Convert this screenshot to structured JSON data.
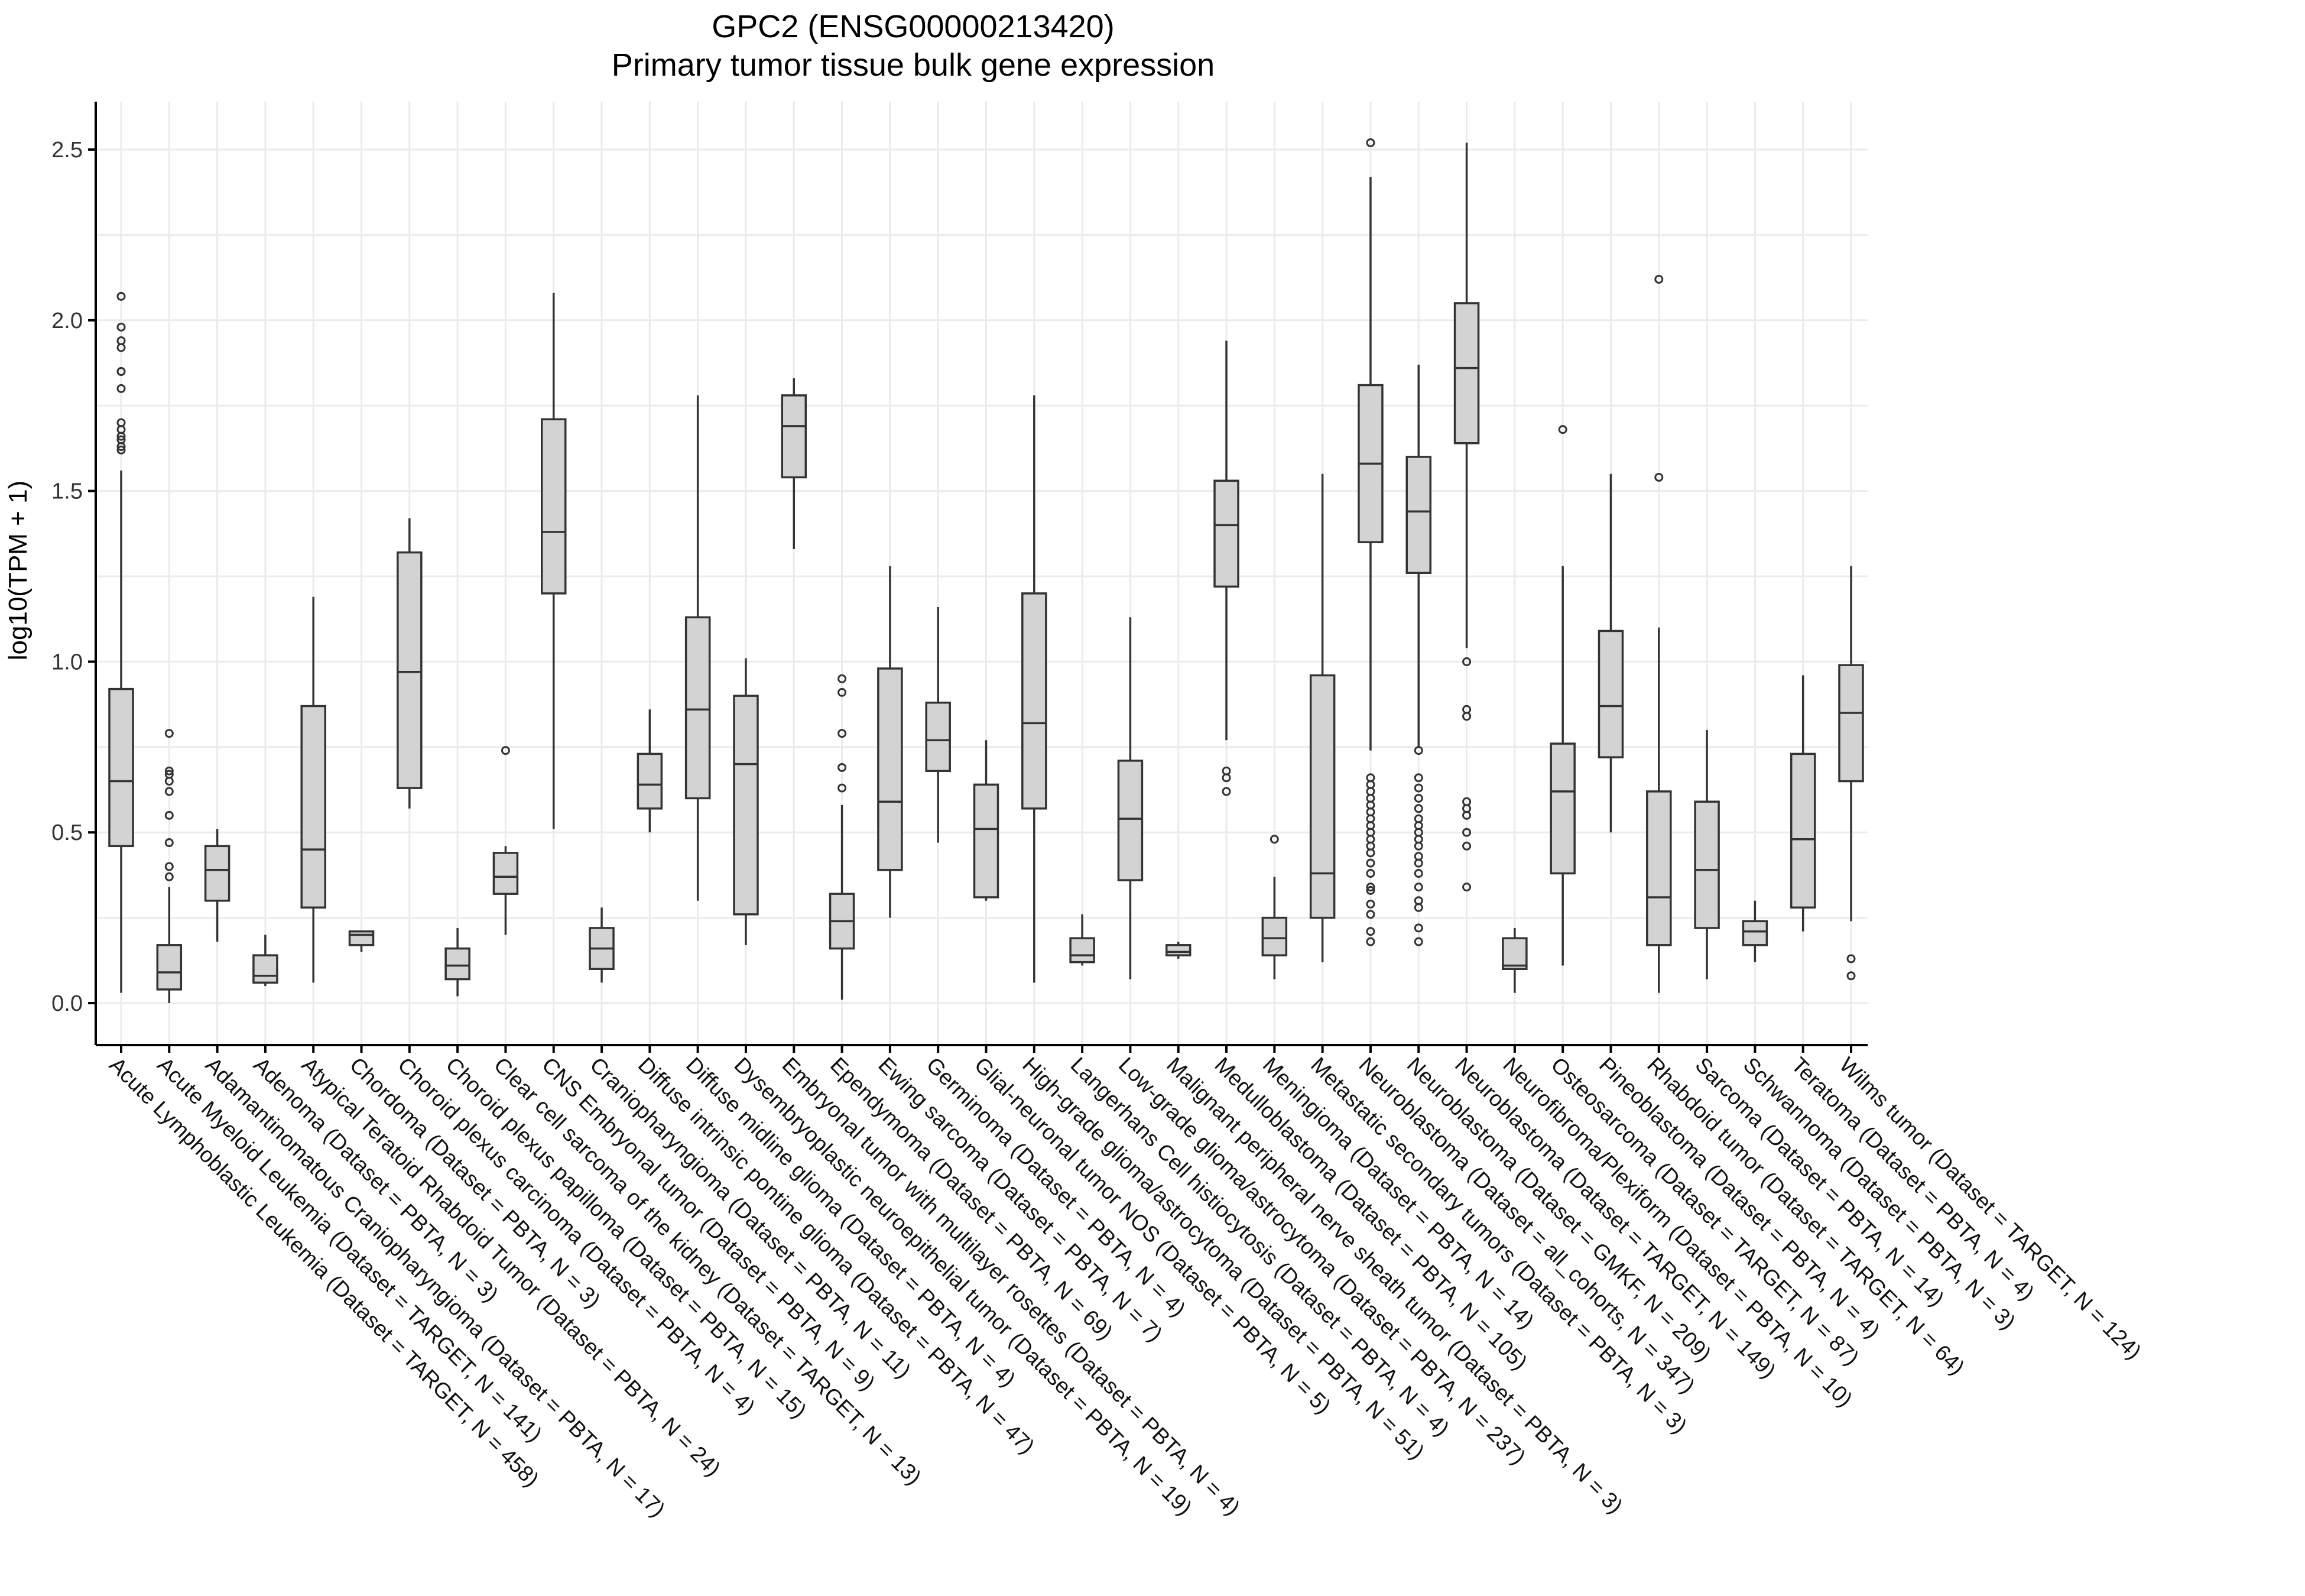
{
  "chart_data": {
    "type": "box",
    "title": "GPC2 (ENSG00000213420)",
    "subtitle": "Primary tumor tissue bulk gene expression",
    "xlabel": "",
    "ylabel": "log10(TPM + 1)",
    "ylim": [
      -0.13,
      2.65
    ],
    "yticks": [
      "0.0",
      "0.5",
      "1.0",
      "1.5",
      "2.0",
      "2.5"
    ],
    "grid": true,
    "colors": {
      "box_fill": "#d3d3d3",
      "box_stroke": "#333333",
      "grid": "#ebebeb"
    },
    "categories": [
      "Acute Lymphoblastic Leukemia (Dataset = TARGET, N = 458)",
      "Acute Myeloid Leukemia (Dataset = TARGET, N = 141)",
      "Adamantinomatous Craniopharyngioma (Dataset = PBTA, N = 17)",
      "Adenoma (Dataset = PBTA, N = 3)",
      "Atypical Teratoid Rhabdoid Tumor (Dataset = PBTA, N = 24)",
      "Chordoma (Dataset = PBTA, N = 3)",
      "Choroid plexus carcinoma (Dataset = PBTA, N = 4)",
      "Choroid plexus papilloma (Dataset = PBTA, N = 15)",
      "Clear cell sarcoma of the kidney (Dataset = TARGET, N = 13)",
      "CNS Embryonal tumor (Dataset = PBTA, N = 9)",
      "Craniopharyngioma (Dataset = PBTA, N = 11)",
      "Diffuse intrinsic pontine glioma (Dataset = PBTA, N = 47)",
      "Diffuse midline glioma (Dataset = PBTA, N = 4)",
      "Dysembryoplastic neuroepithelial tumor (Dataset = PBTA, N = 19)",
      "Embryonal tumor with multilayer rosettes (Dataset = PBTA, N = 4)",
      "Ependymoma (Dataset = PBTA, N = 69)",
      "Ewing sarcoma (Dataset = PBTA, N = 7)",
      "Germinoma (Dataset = PBTA, N = 4)",
      "Glial-neuronal tumor NOS (Dataset = PBTA, N = 5)",
      "High-grade glioma/astrocytoma (Dataset = PBTA, N = 51)",
      "Langerhans Cell histiocytosis (Dataset = PBTA, N = 4)",
      "Low-grade glioma/astrocytoma (Dataset = PBTA, N = 237)",
      "Malignant peripheral nerve sheath tumor (Dataset = PBTA, N = 3)",
      "Medulloblastoma (Dataset = PBTA, N = 105)",
      "Meningioma (Dataset = PBTA, N = 14)",
      "Metastatic secondary tumors (Dataset = PBTA, N = 3)",
      "Neuroblastoma (Dataset = all_cohorts, N = 347)",
      "Neuroblastoma (Dataset = GMKF, N = 209)",
      "Neuroblastoma (Dataset = TARGET, N = 149)",
      "Neurofibroma/Plexiform (Dataset = PBTA, N = 10)",
      "Osteosarcoma (Dataset = TARGET, N = 87)",
      "Pineoblastoma (Dataset = PBTA, N = 4)",
      "Rhabdoid tumor (Dataset = TARGET, N = 64)",
      "Sarcoma (Dataset = PBTA, N = 14)",
      "Schwannoma (Dataset = PBTA, N = 3)",
      "Teratoma (Dataset = PBTA, N = 4)",
      "Wilms tumor (Dataset = TARGET, N = 124)"
    ],
    "boxes": [
      {
        "min": 0.03,
        "q1": 0.46,
        "median": 0.65,
        "q3": 0.92,
        "max": 1.56,
        "outliers": [
          2.07,
          1.98,
          1.94,
          1.92,
          1.85,
          1.85,
          1.8,
          1.7,
          1.68,
          1.66,
          1.65,
          1.63,
          1.62
        ]
      },
      {
        "min": 0.0,
        "q1": 0.04,
        "median": 0.09,
        "q3": 0.17,
        "max": 0.34,
        "outliers": [
          0.79,
          0.68,
          0.67,
          0.65,
          0.62,
          0.55,
          0.47,
          0.4,
          0.37
        ]
      },
      {
        "min": 0.18,
        "q1": 0.3,
        "median": 0.39,
        "q3": 0.46,
        "max": 0.51,
        "outliers": []
      },
      {
        "min": 0.05,
        "q1": 0.06,
        "median": 0.08,
        "q3": 0.14,
        "max": 0.2,
        "outliers": []
      },
      {
        "min": 0.06,
        "q1": 0.28,
        "median": 0.45,
        "q3": 0.87,
        "max": 1.19,
        "outliers": []
      },
      {
        "min": 0.15,
        "q1": 0.17,
        "median": 0.2,
        "q3": 0.21,
        "max": 0.21,
        "outliers": []
      },
      {
        "min": 0.57,
        "q1": 0.63,
        "median": 0.97,
        "q3": 1.32,
        "max": 1.42,
        "outliers": []
      },
      {
        "min": 0.02,
        "q1": 0.07,
        "median": 0.11,
        "q3": 0.16,
        "max": 0.22,
        "outliers": []
      },
      {
        "min": 0.2,
        "q1": 0.32,
        "median": 0.37,
        "q3": 0.44,
        "max": 0.46,
        "outliers": [
          0.74
        ]
      },
      {
        "min": 0.51,
        "q1": 1.2,
        "median": 1.38,
        "q3": 1.71,
        "max": 2.08,
        "outliers": []
      },
      {
        "min": 0.06,
        "q1": 0.1,
        "median": 0.16,
        "q3": 0.22,
        "max": 0.28,
        "outliers": []
      },
      {
        "min": 0.5,
        "q1": 0.57,
        "median": 0.64,
        "q3": 0.73,
        "max": 0.86,
        "outliers": []
      },
      {
        "min": 0.3,
        "q1": 0.6,
        "median": 0.86,
        "q3": 1.13,
        "max": 1.78,
        "outliers": []
      },
      {
        "min": 0.17,
        "q1": 0.26,
        "median": 0.7,
        "q3": 0.9,
        "max": 1.01,
        "outliers": []
      },
      {
        "min": 1.33,
        "q1": 1.54,
        "median": 1.69,
        "q3": 1.78,
        "max": 1.83,
        "outliers": []
      },
      {
        "min": 0.01,
        "q1": 0.16,
        "median": 0.24,
        "q3": 0.32,
        "max": 0.58,
        "outliers": [
          0.95,
          0.91,
          0.79,
          0.69,
          0.63
        ]
      },
      {
        "min": 0.25,
        "q1": 0.39,
        "median": 0.59,
        "q3": 0.98,
        "max": 1.28,
        "outliers": []
      },
      {
        "min": 0.47,
        "q1": 0.68,
        "median": 0.77,
        "q3": 0.88,
        "max": 1.16,
        "outliers": []
      },
      {
        "min": 0.3,
        "q1": 0.31,
        "median": 0.51,
        "q3": 0.64,
        "max": 0.77,
        "outliers": []
      },
      {
        "min": 0.06,
        "q1": 0.57,
        "median": 0.82,
        "q3": 1.2,
        "max": 1.78,
        "outliers": []
      },
      {
        "min": 0.11,
        "q1": 0.12,
        "median": 0.14,
        "q3": 0.19,
        "max": 0.26,
        "outliers": []
      },
      {
        "min": 0.07,
        "q1": 0.36,
        "median": 0.54,
        "q3": 0.71,
        "max": 1.13,
        "outliers": []
      },
      {
        "min": 0.13,
        "q1": 0.14,
        "median": 0.15,
        "q3": 0.17,
        "max": 0.18,
        "outliers": []
      },
      {
        "min": 0.77,
        "q1": 1.22,
        "median": 1.4,
        "q3": 1.53,
        "max": 1.94,
        "outliers": [
          0.68,
          0.66,
          0.62
        ]
      },
      {
        "min": 0.07,
        "q1": 0.14,
        "median": 0.19,
        "q3": 0.25,
        "max": 0.37,
        "outliers": [
          0.48
        ]
      },
      {
        "min": 0.12,
        "q1": 0.25,
        "median": 0.38,
        "q3": 0.96,
        "max": 1.55,
        "outliers": []
      },
      {
        "min": 0.74,
        "q1": 1.35,
        "median": 1.58,
        "q3": 1.81,
        "max": 2.42,
        "outliers": [
          2.52,
          0.66,
          0.64,
          0.62,
          0.6,
          0.58,
          0.56,
          0.54,
          0.52,
          0.5,
          0.48,
          0.46,
          0.44,
          0.41,
          0.38,
          0.34,
          0.33,
          0.29,
          0.26,
          0.21,
          0.18
        ]
      },
      {
        "min": 0.75,
        "q1": 1.26,
        "median": 1.44,
        "q3": 1.6,
        "max": 1.87,
        "outliers": [
          0.74,
          0.66,
          0.63,
          0.6,
          0.57,
          0.54,
          0.52,
          0.5,
          0.48,
          0.46,
          0.43,
          0.41,
          0.38,
          0.34,
          0.3,
          0.28,
          0.22,
          0.18
        ]
      },
      {
        "min": 1.04,
        "q1": 1.64,
        "median": 1.86,
        "q3": 2.05,
        "max": 2.52,
        "outliers": [
          1.0,
          0.86,
          0.84,
          0.59,
          0.57,
          0.55,
          0.5,
          0.46,
          0.34
        ]
      },
      {
        "min": 0.03,
        "q1": 0.1,
        "median": 0.11,
        "q3": 0.19,
        "max": 0.22,
        "outliers": []
      },
      {
        "min": 0.11,
        "q1": 0.38,
        "median": 0.62,
        "q3": 0.76,
        "max": 1.28,
        "outliers": [
          1.68
        ]
      },
      {
        "min": 0.5,
        "q1": 0.72,
        "median": 0.87,
        "q3": 1.09,
        "max": 1.55,
        "outliers": []
      },
      {
        "min": 0.03,
        "q1": 0.17,
        "median": 0.31,
        "q3": 0.62,
        "max": 1.1,
        "outliers": [
          2.12,
          1.54
        ]
      },
      {
        "min": 0.07,
        "q1": 0.22,
        "median": 0.39,
        "q3": 0.59,
        "max": 0.8,
        "outliers": []
      },
      {
        "min": 0.12,
        "q1": 0.17,
        "median": 0.21,
        "q3": 0.24,
        "max": 0.3,
        "outliers": []
      },
      {
        "min": 0.21,
        "q1": 0.28,
        "median": 0.48,
        "q3": 0.73,
        "max": 0.96,
        "outliers": []
      },
      {
        "min": 0.24,
        "q1": 0.65,
        "median": 0.85,
        "q3": 0.99,
        "max": 1.28,
        "outliers": [
          0.13,
          0.08
        ]
      }
    ]
  }
}
